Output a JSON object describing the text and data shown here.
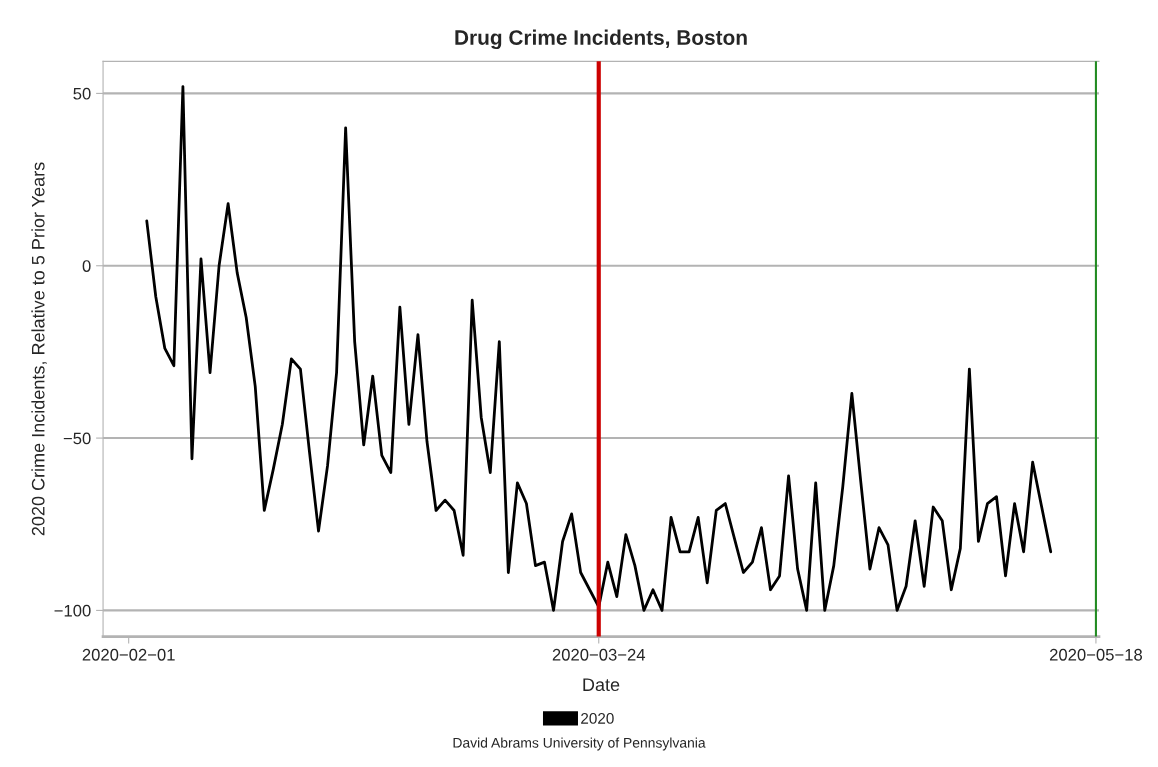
{
  "chart_data": {
    "type": "line",
    "title": "Drug Crime Incidents, Boston",
    "xlabel": "Date",
    "ylabel": "2020 Crime Incidents, Relative to 5 Prior Years",
    "annotations": [
      "David Abrams University of Pennsylvania"
    ],
    "x": [
      "2020-02-03",
      "2020-02-04",
      "2020-02-05",
      "2020-02-06",
      "2020-02-07",
      "2020-02-08",
      "2020-02-09",
      "2020-02-10",
      "2020-02-11",
      "2020-02-12",
      "2020-02-13",
      "2020-02-14",
      "2020-02-15",
      "2020-02-16",
      "2020-02-17",
      "2020-02-18",
      "2020-02-19",
      "2020-02-20",
      "2020-02-21",
      "2020-02-22",
      "2020-02-23",
      "2020-02-24",
      "2020-02-25",
      "2020-02-26",
      "2020-02-27",
      "2020-02-28",
      "2020-02-29",
      "2020-03-01",
      "2020-03-02",
      "2020-03-03",
      "2020-03-04",
      "2020-03-05",
      "2020-03-06",
      "2020-03-07",
      "2020-03-08",
      "2020-03-09",
      "2020-03-10",
      "2020-03-11",
      "2020-03-12",
      "2020-03-13",
      "2020-03-14",
      "2020-03-15",
      "2020-03-16",
      "2020-03-17",
      "2020-03-18",
      "2020-03-19",
      "2020-03-20",
      "2020-03-21",
      "2020-03-22",
      "2020-03-23",
      "2020-03-24",
      "2020-03-25",
      "2020-03-26",
      "2020-03-27",
      "2020-03-28",
      "2020-03-29",
      "2020-03-30",
      "2020-03-31",
      "2020-04-01",
      "2020-04-02",
      "2020-04-03",
      "2020-04-04",
      "2020-04-05",
      "2020-04-06",
      "2020-04-07",
      "2020-04-08",
      "2020-04-09",
      "2020-04-10",
      "2020-04-11",
      "2020-04-12",
      "2020-04-13",
      "2020-04-14",
      "2020-04-15",
      "2020-04-16",
      "2020-04-17",
      "2020-04-18",
      "2020-04-19",
      "2020-04-20",
      "2020-04-21",
      "2020-04-22",
      "2020-04-23",
      "2020-04-24",
      "2020-04-25",
      "2020-04-26",
      "2020-04-27",
      "2020-04-28",
      "2020-04-29",
      "2020-04-30",
      "2020-05-01",
      "2020-05-02",
      "2020-05-03",
      "2020-05-04",
      "2020-05-05",
      "2020-05-06",
      "2020-05-07",
      "2020-05-08",
      "2020-05-09",
      "2020-05-10",
      "2020-05-11",
      "2020-05-12",
      "2020-05-13"
    ],
    "series": [
      {
        "name": "2020",
        "color": "#000000",
        "values": [
          13,
          -9,
          -24,
          -29,
          52,
          -56,
          2,
          -31,
          0,
          18,
          -2,
          -15,
          -35,
          -71,
          -59,
          -46,
          -27,
          -30,
          -54,
          -77,
          -58,
          -31,
          40,
          -22,
          -52,
          -32,
          -55,
          -60,
          -12,
          -46,
          -20,
          -51,
          -71,
          -68,
          -71,
          -84,
          -10,
          -44,
          -60,
          -22,
          -89,
          -63,
          -69,
          -87,
          -86,
          -100,
          -80,
          -72,
          -89,
          -94,
          -99,
          -86,
          -96,
          -78,
          -87,
          -100,
          -94,
          -100,
          -73,
          -83,
          -83,
          -73,
          -92,
          -71,
          -69,
          -79,
          -89,
          -86,
          -76,
          -94,
          -90,
          -61,
          -88,
          -100,
          -63,
          -100,
          -87,
          -64,
          -37,
          -63,
          -88,
          -76,
          -81,
          -100,
          -93,
          -74,
          -93,
          -70,
          -74,
          -94,
          -82,
          -30,
          -80,
          -69,
          -67,
          -90,
          -69,
          -83,
          -57,
          -70,
          -83
        ]
      }
    ],
    "xlim": [
      "2020-01-29T04:00",
      "2020-05-18T08:00"
    ],
    "xticks": [
      {
        "value": "2020-02-01",
        "label": "2020−02−01"
      },
      {
        "value": "2020-03-24",
        "label": "2020−03−24"
      },
      {
        "value": "2020-05-18",
        "label": "2020−05−18"
      }
    ],
    "ylim": [
      -107.6,
      59.3
    ],
    "yticks": [
      50,
      0,
      {
        "value": -50,
        "label": "−50"
      },
      {
        "value": -100,
        "label": "−100"
      }
    ],
    "ref_lines": [
      {
        "axis": "x",
        "value": "2020-03-24",
        "color": "#cc0000"
      },
      {
        "axis": "x",
        "value": "2020-05-18",
        "color": "#228b22"
      }
    ],
    "grid": "y",
    "legend": "bottom",
    "line_style": "solid",
    "marker": "none"
  }
}
